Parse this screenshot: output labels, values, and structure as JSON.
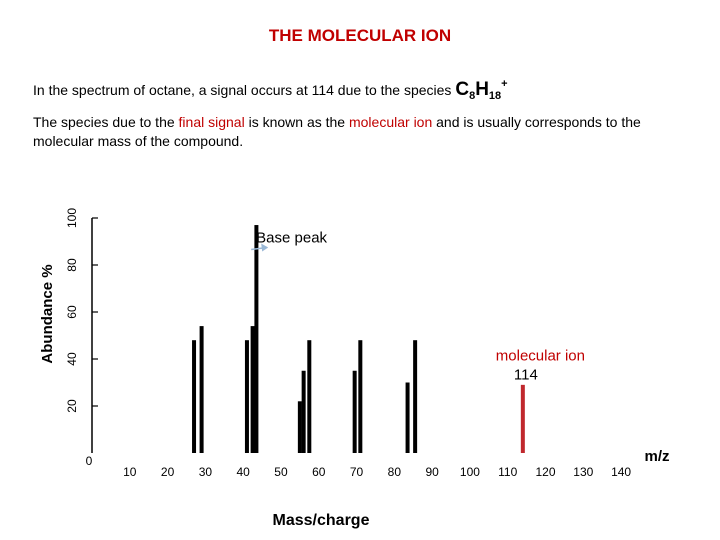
{
  "header": {
    "title": "THE MOLECULAR ION"
  },
  "intro": {
    "text": "In the spectrum of octane, a signal occurs at 114 due to the species",
    "formula": {
      "c": "C",
      "c_sub": "8",
      "h": "H",
      "h_sub": "18",
      "charge": "+"
    }
  },
  "paragraph": {
    "p1": "The species due to the ",
    "p2": "final signal",
    "p3": " is known as the ",
    "p4": "molecular ion",
    "p5": " and is usually corresponds to the molecular mass of the compound."
  },
  "chart_data": {
    "type": "bar",
    "xlabel": "Mass/charge",
    "xunit": "m/z",
    "ylabel": "Abundance %",
    "xlim": [
      0,
      145
    ],
    "ylim": [
      0,
      100
    ],
    "x_ticks": [
      "0",
      "10",
      "20",
      "30",
      "40",
      "50",
      "60",
      "70",
      "80",
      "90",
      "100",
      "110",
      "120",
      "130",
      "140"
    ],
    "y_ticks": [
      "20",
      "40",
      "60",
      "80",
      "100"
    ],
    "bars": [
      {
        "x": 27,
        "y": 48,
        "color": "#000000"
      },
      {
        "x": 29,
        "y": 54,
        "color": "#000000"
      },
      {
        "x": 41,
        "y": 48,
        "color": "#000000"
      },
      {
        "x": 42.5,
        "y": 54,
        "color": "#000000"
      },
      {
        "x": 43.5,
        "y": 97,
        "color": "#000000"
      },
      {
        "x": 55,
        "y": 22,
        "color": "#000000"
      },
      {
        "x": 56,
        "y": 35,
        "color": "#000000"
      },
      {
        "x": 57.5,
        "y": 48,
        "color": "#000000"
      },
      {
        "x": 69.5,
        "y": 35,
        "color": "#000000"
      },
      {
        "x": 71,
        "y": 48,
        "color": "#000000"
      },
      {
        "x": 83.5,
        "y": 30,
        "color": "#000000"
      },
      {
        "x": 85.5,
        "y": 48,
        "color": "#000000"
      },
      {
        "x": 114,
        "y": 29,
        "color": "#c0282d"
      }
    ],
    "annotations": [
      {
        "label": "Base peak",
        "x": 49,
        "y": 90
      },
      {
        "label": "molecular ion",
        "x": 116,
        "y": 42
      },
      {
        "label": "114",
        "x": 114,
        "y": 30
      }
    ],
    "grid": false,
    "legend": "none"
  }
}
